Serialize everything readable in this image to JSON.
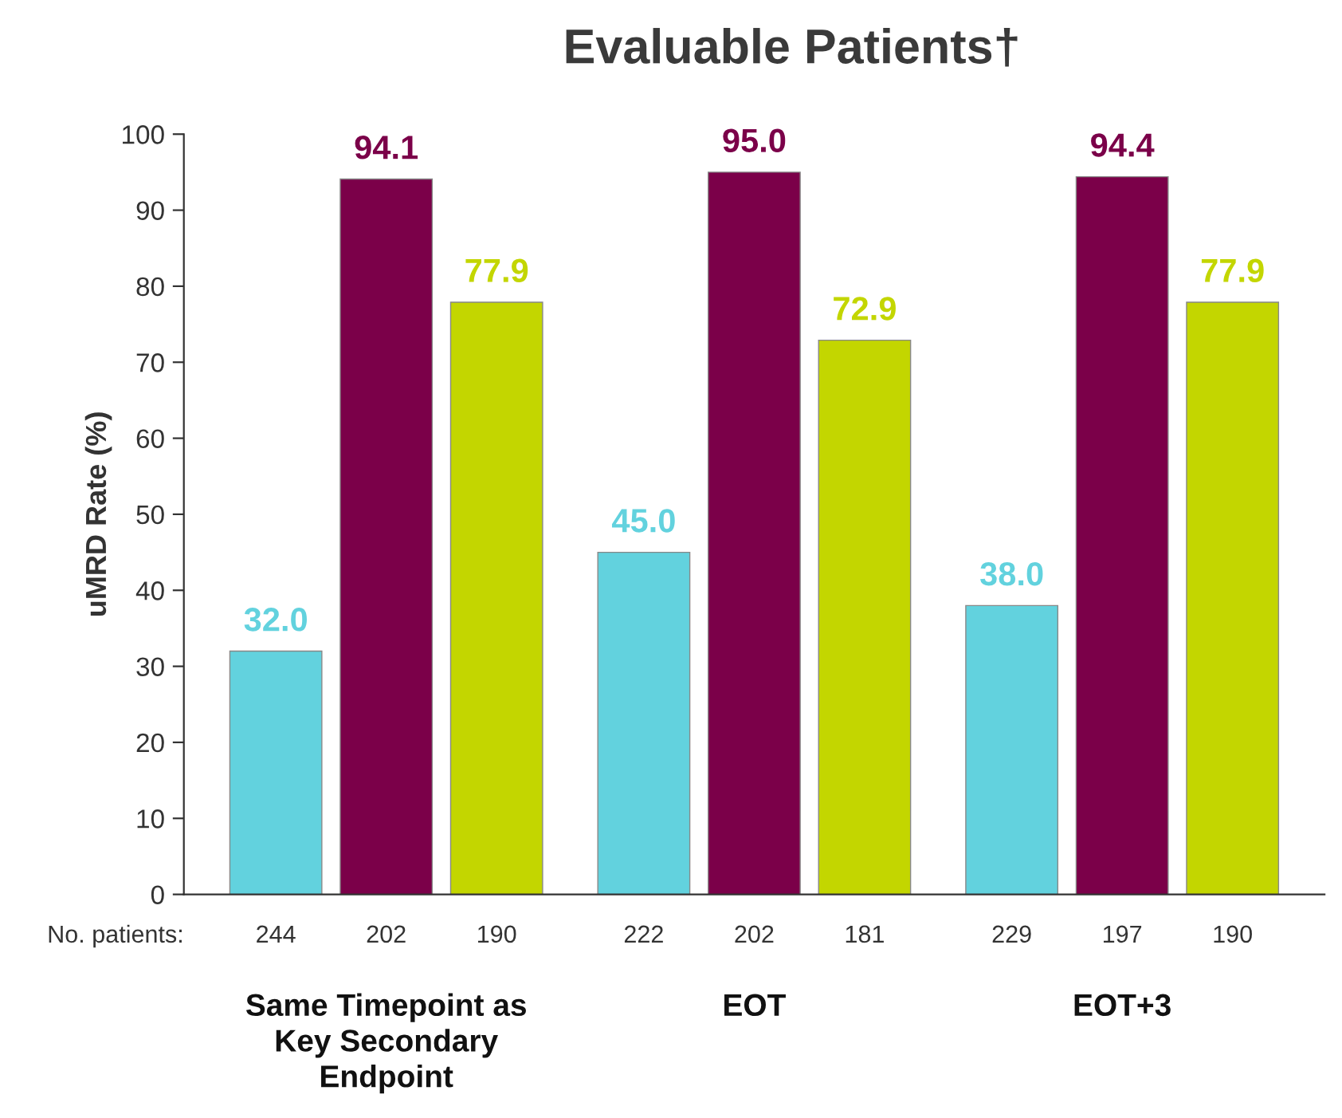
{
  "chart_data": {
    "type": "bar",
    "title": "Evaluable Patients†",
    "ylabel": "uMRD Rate (%)",
    "categories": [
      "Same Timepoint as Key Secondary Endpoint",
      "EOT",
      "EOT+3"
    ],
    "series": [
      {
        "color": "#62d2de",
        "values": [
          32.0,
          45.0,
          38.0
        ],
        "value_labels": [
          "32.0",
          "45.0",
          "38.0"
        ]
      },
      {
        "color": "#7b0049",
        "values": [
          94.1,
          95.0,
          94.4
        ],
        "value_labels": [
          "94.1",
          "95.0",
          "94.4"
        ]
      },
      {
        "color": "#c3d600",
        "values": [
          77.9,
          72.9,
          77.9
        ],
        "value_labels": [
          "77.9",
          "72.9",
          "77.9"
        ]
      }
    ],
    "ylim": [
      0,
      100
    ],
    "yticks": [
      0,
      10,
      20,
      30,
      40,
      50,
      60,
      70,
      80,
      90,
      100
    ],
    "grid": false,
    "legend": false,
    "annotations": [
      "No. patients:",
      "244",
      "202",
      "190",
      "222",
      "202",
      "181",
      "229",
      "197",
      "190"
    ]
  }
}
